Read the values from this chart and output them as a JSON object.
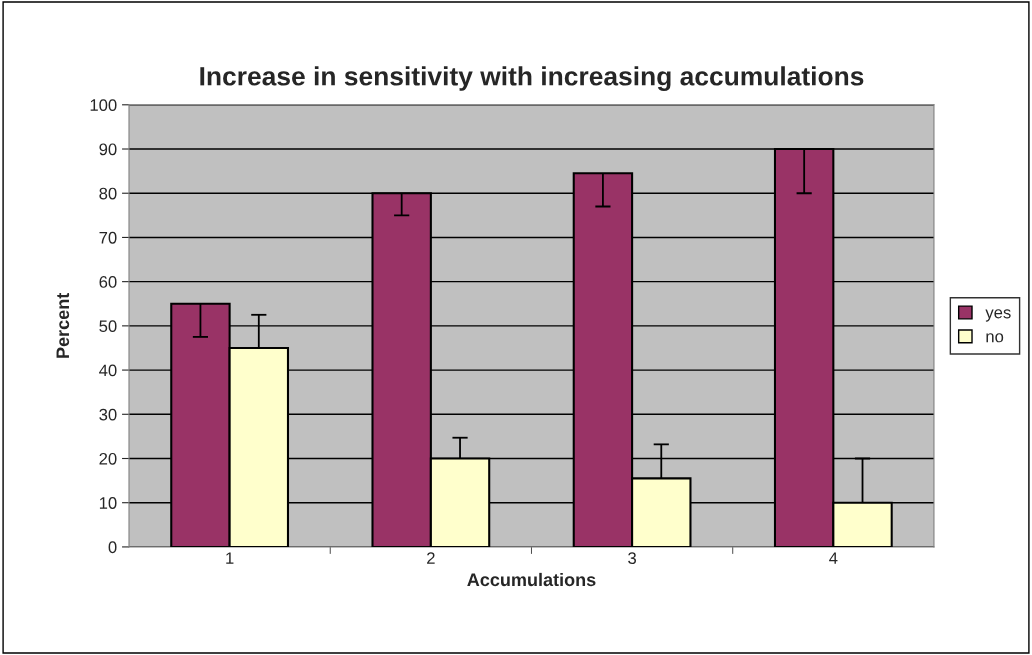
{
  "chart_data": {
    "type": "bar",
    "title": "Increase in sensitivity with increasing accumulations",
    "xlabel": "Accumulations",
    "ylabel": "Percent",
    "categories": [
      "1",
      "2",
      "3",
      "4"
    ],
    "series": [
      {
        "name": "yes",
        "color": "#993366",
        "values": [
          55,
          80,
          84.5,
          90
        ],
        "errors": [
          [
            47.5,
            55
          ],
          [
            75,
            80
          ],
          [
            77,
            84.5
          ],
          [
            80,
            90
          ]
        ]
      },
      {
        "name": "no",
        "color": "#ffffcc",
        "values": [
          45,
          20,
          15.5,
          10
        ],
        "errors": [
          [
            45,
            52.5
          ],
          [
            20,
            24.7
          ],
          [
            15.5,
            23.2
          ],
          [
            10,
            20
          ]
        ]
      }
    ],
    "ylim": [
      0,
      100
    ],
    "yticks": [
      0,
      10,
      20,
      30,
      40,
      50,
      60,
      70,
      80,
      90,
      100
    ],
    "grid": "y",
    "legend": "right"
  }
}
